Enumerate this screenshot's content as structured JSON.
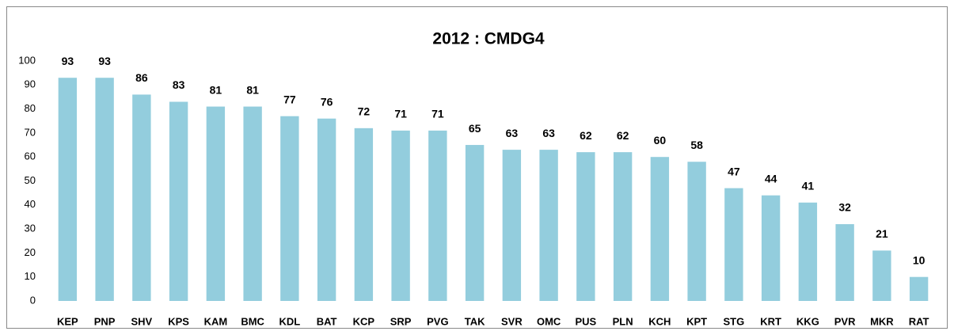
{
  "chart_data": {
    "type": "bar",
    "title": "2012 : CMDG4",
    "categories": [
      "KEP",
      "PNP",
      "SHV",
      "KPS",
      "KAM",
      "BMC",
      "KDL",
      "BAT",
      "KCP",
      "SRP",
      "PVG",
      "TAK",
      "SVR",
      "OMC",
      "PUS",
      "PLN",
      "KCH",
      "KPT",
      "STG",
      "KRT",
      "KKG",
      "PVR",
      "MKR",
      "RAT"
    ],
    "values": [
      93,
      93,
      86,
      83,
      81,
      81,
      77,
      76,
      72,
      71,
      71,
      65,
      63,
      63,
      62,
      62,
      60,
      58,
      47,
      44,
      41,
      32,
      21,
      10
    ],
    "color": "#93cddd",
    "ylim": [
      0,
      100
    ],
    "yticks": [
      0,
      10,
      20,
      30,
      40,
      50,
      60,
      70,
      80,
      90,
      100
    ],
    "grid": false
  }
}
